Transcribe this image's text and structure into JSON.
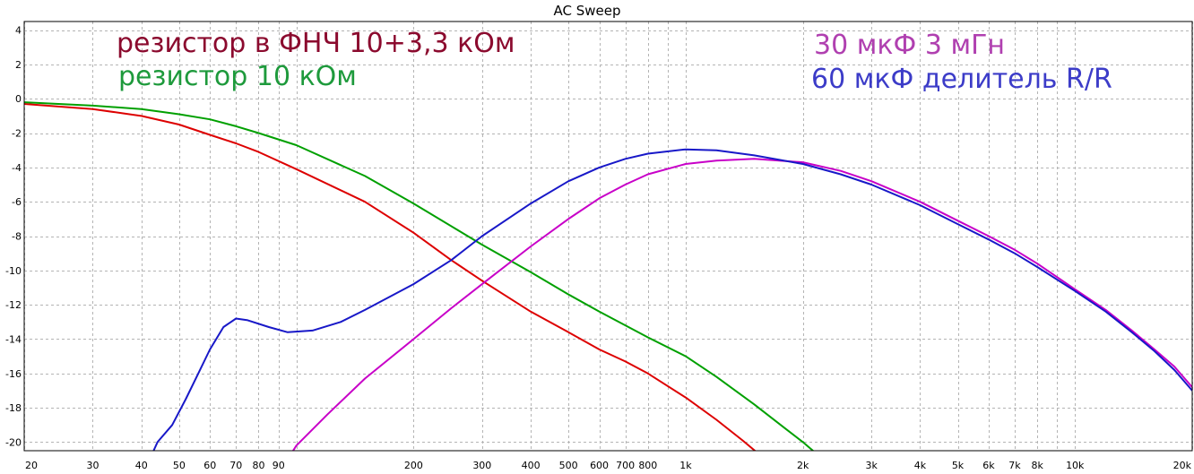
{
  "chart_data": {
    "type": "line",
    "title": "AC Sweep",
    "x_scale": "log",
    "xlim": [
      20,
      20000
    ],
    "ylim": [
      -20.5,
      4.5
    ],
    "grid": true,
    "x_ticks": [
      {
        "value": 20,
        "label": "20"
      },
      {
        "value": 30,
        "label": "30"
      },
      {
        "value": 40,
        "label": "40"
      },
      {
        "value": 50,
        "label": "50"
      },
      {
        "value": 60,
        "label": "60"
      },
      {
        "value": 70,
        "label": "70"
      },
      {
        "value": 80,
        "label": "80"
      },
      {
        "value": 90,
        "label": "90"
      },
      {
        "value": 200,
        "label": "200"
      },
      {
        "value": 300,
        "label": "300"
      },
      {
        "value": 400,
        "label": "400"
      },
      {
        "value": 500,
        "label": "500"
      },
      {
        "value": 600,
        "label": "600"
      },
      {
        "value": 700,
        "label": "700"
      },
      {
        "value": 800,
        "label": "800"
      },
      {
        "value": 1000,
        "label": "1k"
      },
      {
        "value": 2000,
        "label": "2k"
      },
      {
        "value": 3000,
        "label": "3k"
      },
      {
        "value": 4000,
        "label": "4k"
      },
      {
        "value": 5000,
        "label": "5k"
      },
      {
        "value": 6000,
        "label": "6k"
      },
      {
        "value": 7000,
        "label": "7k"
      },
      {
        "value": 8000,
        "label": "8k"
      },
      {
        "value": 10000,
        "label": "10k"
      },
      {
        "value": 20000,
        "label": "20k"
      }
    ],
    "x_minor": [
      100,
      900,
      9000
    ],
    "y_ticks": [
      {
        "value": 4,
        "label": "4"
      },
      {
        "value": 2,
        "label": "2"
      },
      {
        "value": 0,
        "label": "0"
      },
      {
        "value": -2,
        "label": "-2"
      },
      {
        "value": -4,
        "label": "-4"
      },
      {
        "value": -6,
        "label": "-6"
      },
      {
        "value": -8,
        "label": "-8"
      },
      {
        "value": -10,
        "label": "-10"
      },
      {
        "value": -12,
        "label": "-12"
      },
      {
        "value": -14,
        "label": "-14"
      },
      {
        "value": -16,
        "label": "-16"
      },
      {
        "value": -18,
        "label": "-18"
      },
      {
        "value": -20,
        "label": "-20"
      }
    ],
    "series": [
      {
        "color": "#dd0000",
        "points": [
          [
            20,
            -0.3
          ],
          [
            30,
            -0.6
          ],
          [
            40,
            -1.0
          ],
          [
            50,
            -1.5
          ],
          [
            60,
            -2.1
          ],
          [
            70,
            -2.6
          ],
          [
            80,
            -3.1
          ],
          [
            100,
            -4.1
          ],
          [
            150,
            -6.0
          ],
          [
            200,
            -7.8
          ],
          [
            250,
            -9.4
          ],
          [
            300,
            -10.6
          ],
          [
            400,
            -12.4
          ],
          [
            500,
            -13.6
          ],
          [
            600,
            -14.6
          ],
          [
            700,
            -15.3
          ],
          [
            800,
            -16.0
          ],
          [
            1000,
            -17.4
          ],
          [
            1200,
            -18.7
          ],
          [
            1400,
            -19.9
          ],
          [
            1600,
            -21.0
          ]
        ]
      },
      {
        "color": "#00a000",
        "points": [
          [
            20,
            -0.2
          ],
          [
            30,
            -0.4
          ],
          [
            40,
            -0.6
          ],
          [
            50,
            -0.9
          ],
          [
            60,
            -1.2
          ],
          [
            70,
            -1.6
          ],
          [
            80,
            -2.0
          ],
          [
            100,
            -2.7
          ],
          [
            150,
            -4.5
          ],
          [
            200,
            -6.1
          ],
          [
            300,
            -8.5
          ],
          [
            400,
            -10.1
          ],
          [
            500,
            -11.4
          ],
          [
            600,
            -12.4
          ],
          [
            700,
            -13.2
          ],
          [
            800,
            -13.9
          ],
          [
            1000,
            -15.0
          ],
          [
            1200,
            -16.2
          ],
          [
            1500,
            -17.8
          ],
          [
            1800,
            -19.2
          ],
          [
            2000,
            -20.0
          ],
          [
            2200,
            -20.8
          ]
        ]
      },
      {
        "color": "#c800c8",
        "points": [
          [
            95,
            -21.0
          ],
          [
            100,
            -20.2
          ],
          [
            120,
            -18.4
          ],
          [
            150,
            -16.3
          ],
          [
            200,
            -14.0
          ],
          [
            250,
            -12.2
          ],
          [
            300,
            -10.8
          ],
          [
            400,
            -8.6
          ],
          [
            500,
            -7.0
          ],
          [
            600,
            -5.8
          ],
          [
            700,
            -5.0
          ],
          [
            800,
            -4.4
          ],
          [
            1000,
            -3.8
          ],
          [
            1200,
            -3.6
          ],
          [
            1500,
            -3.5
          ],
          [
            2000,
            -3.7
          ],
          [
            2500,
            -4.2
          ],
          [
            3000,
            -4.8
          ],
          [
            4000,
            -6.0
          ],
          [
            5000,
            -7.1
          ],
          [
            6000,
            -8.0
          ],
          [
            7000,
            -8.8
          ],
          [
            8000,
            -9.6
          ],
          [
            10000,
            -11.1
          ],
          [
            12000,
            -12.3
          ],
          [
            14000,
            -13.5
          ],
          [
            16000,
            -14.6
          ],
          [
            18000,
            -15.6
          ],
          [
            20000,
            -16.8
          ]
        ]
      },
      {
        "color": "#1818c8",
        "points": [
          [
            42,
            -21.0
          ],
          [
            44,
            -20.0
          ],
          [
            48,
            -19.0
          ],
          [
            52,
            -17.5
          ],
          [
            56,
            -16.0
          ],
          [
            60,
            -14.6
          ],
          [
            65,
            -13.3
          ],
          [
            70,
            -12.8
          ],
          [
            75,
            -12.9
          ],
          [
            85,
            -13.3
          ],
          [
            95,
            -13.6
          ],
          [
            110,
            -13.5
          ],
          [
            130,
            -13.0
          ],
          [
            150,
            -12.3
          ],
          [
            200,
            -10.8
          ],
          [
            250,
            -9.4
          ],
          [
            300,
            -8.0
          ],
          [
            400,
            -6.1
          ],
          [
            500,
            -4.8
          ],
          [
            600,
            -4.0
          ],
          [
            700,
            -3.5
          ],
          [
            800,
            -3.2
          ],
          [
            1000,
            -2.95
          ],
          [
            1200,
            -3.0
          ],
          [
            1500,
            -3.3
          ],
          [
            2000,
            -3.8
          ],
          [
            2500,
            -4.4
          ],
          [
            3000,
            -5.0
          ],
          [
            4000,
            -6.2
          ],
          [
            5000,
            -7.3
          ],
          [
            6000,
            -8.2
          ],
          [
            7000,
            -9.0
          ],
          [
            8000,
            -9.8
          ],
          [
            10000,
            -11.2
          ],
          [
            12000,
            -12.4
          ],
          [
            14000,
            -13.6
          ],
          [
            16000,
            -14.7
          ],
          [
            18000,
            -15.8
          ],
          [
            20000,
            -17.0
          ]
        ]
      }
    ],
    "annotations": [
      {
        "text": "резистор в ФНЧ 10+3,3 кОм",
        "color": "#8b0a2e"
      },
      {
        "text": "резистор 10 кОм",
        "color": "#1e9a3c"
      },
      {
        "text": "30 мкФ 3 мГн",
        "color": "#b040b0"
      },
      {
        "text": "60 мкФ делитель R/R",
        "color": "#3c3cc8"
      }
    ]
  }
}
